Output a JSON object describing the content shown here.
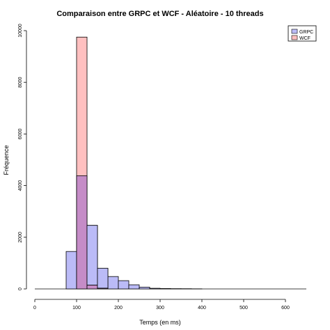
{
  "chart_data": {
    "type": "bar",
    "title": "Comparaison entre GRPC et WCF - Aléatoire - 10 threads",
    "xlabel": "Temps (en ms)",
    "ylabel": "Fréquence",
    "xlim": [
      0,
      650
    ],
    "ylim": [
      0,
      10000
    ],
    "xticks": [
      0,
      100,
      200,
      300,
      400,
      500,
      600
    ],
    "yticks": [
      0,
      2000,
      4000,
      6000,
      8000,
      10000
    ],
    "bin_width": 25,
    "legend_position": "top-right",
    "baseline_range": [
      0,
      650
    ],
    "series": [
      {
        "name": "GRPC",
        "color": "#bbbbf7",
        "bins": [
          {
            "x0": 75,
            "x1": 100,
            "value": 1450
          },
          {
            "x0": 100,
            "x1": 125,
            "value": 4380
          },
          {
            "x0": 125,
            "x1": 150,
            "value": 2460
          },
          {
            "x0": 150,
            "x1": 175,
            "value": 800
          },
          {
            "x0": 175,
            "x1": 200,
            "value": 480
          },
          {
            "x0": 200,
            "x1": 225,
            "value": 320
          },
          {
            "x0": 225,
            "x1": 250,
            "value": 160
          },
          {
            "x0": 250,
            "x1": 275,
            "value": 70
          },
          {
            "x0": 275,
            "x1": 300,
            "value": 25
          },
          {
            "x0": 300,
            "x1": 325,
            "value": 15
          },
          {
            "x0": 325,
            "x1": 350,
            "value": 10
          },
          {
            "x0": 350,
            "x1": 375,
            "value": 8
          },
          {
            "x0": 375,
            "x1": 400,
            "value": 4
          }
        ]
      },
      {
        "name": "WCF",
        "color": "#ffc0c0",
        "bins": [
          {
            "x0": 100,
            "x1": 125,
            "value": 9750
          },
          {
            "x0": 125,
            "x1": 150,
            "value": 150
          },
          {
            "x0": 150,
            "x1": 175,
            "value": 30
          }
        ]
      }
    ],
    "overlap_color": "#c58cc7"
  }
}
